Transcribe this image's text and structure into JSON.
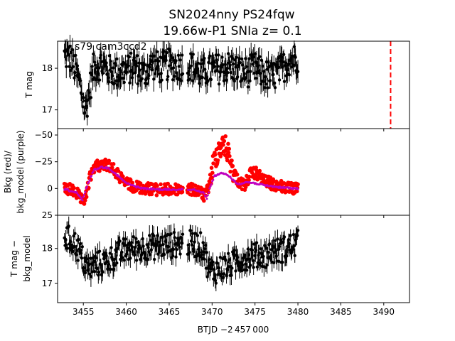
{
  "title_line1": "SN2024nny  PS24fqw",
  "title_line2": "19.66w-P1 SNIa z= 0.1",
  "xlabel": "BTJD −2 457 000",
  "colors": {
    "data": "#000000",
    "bkg": "#ff0000",
    "bkg_model": "#bf00bf",
    "marker": "#ff0000"
  },
  "chart_data": [
    {
      "type": "scatter",
      "panel": "top",
      "annotation": "s79 cam3ccd2",
      "ylabel": "T mag",
      "xlim": [
        3452,
        3493
      ],
      "ylim": [
        18.65,
        16.55
      ],
      "y_inverted": true,
      "xticks": [
        3455,
        3460,
        3465,
        3470,
        3475,
        3480,
        3485,
        3490
      ],
      "yticks": [
        17,
        18
      ],
      "ytick_labels": [
        "17",
        "18"
      ],
      "vline_x": 3490.8,
      "x_range": [
        3452.8,
        3480.0
      ],
      "y_range": [
        16.6,
        18.55
      ],
      "series": [
        {
          "values": [
            [
              3452.8,
              18.3
            ],
            [
              3453.5,
              18.25
            ],
            [
              3454.2,
              17.9
            ],
            [
              3454.8,
              17.45
            ],
            [
              3455.2,
              16.95
            ],
            [
              3455.6,
              17.35
            ],
            [
              3456.2,
              18.0
            ],
            [
              3457.0,
              18.1
            ],
            [
              3458.0,
              17.95
            ],
            [
              3459.0,
              17.9
            ],
            [
              3460.0,
              17.95
            ],
            [
              3461.0,
              18.05
            ],
            [
              3462.0,
              17.85
            ],
            [
              3463.0,
              18.1
            ],
            [
              3464.0,
              18.0
            ],
            [
              3465.0,
              18.1
            ],
            [
              3466.0,
              18.05
            ],
            [
              3467.0,
              18.1
            ],
            [
              3468.0,
              18.0
            ],
            [
              3468.8,
              17.85
            ],
            [
              3469.5,
              17.95
            ],
            [
              3470.0,
              17.95
            ],
            [
              3471.0,
              18.0
            ],
            [
              3472.0,
              18.05
            ],
            [
              3473.0,
              17.95
            ],
            [
              3474.0,
              17.9
            ],
            [
              3475.0,
              18.0
            ],
            [
              3476.0,
              17.85
            ],
            [
              3477.0,
              17.8
            ],
            [
              3478.0,
              17.95
            ],
            [
              3479.0,
              18.2
            ],
            [
              3480.0,
              18.25
            ]
          ]
        }
      ]
    },
    {
      "type": "scatter",
      "panel": "middle",
      "ylabel_line1": "Bkg (red)/",
      "ylabel_line2": "bkg_model (purple)",
      "xlim": [
        3452,
        3493
      ],
      "ylim": [
        -56,
        25
      ],
      "yticks": [
        25,
        0,
        -25,
        -50
      ],
      "ytick_labels": [
        "25",
        "0",
        "−25",
        "−50"
      ],
      "series": [
        {
          "name": "Bkg",
          "values": [
            [
              3452.8,
              1
            ],
            [
              3453.5,
              1
            ],
            [
              3454.3,
              5
            ],
            [
              3454.9,
              13
            ],
            [
              3455.3,
              8
            ],
            [
              3455.7,
              -8
            ],
            [
              3456.2,
              -20
            ],
            [
              3457.0,
              -22
            ],
            [
              3458.0,
              -22
            ],
            [
              3458.8,
              -15
            ],
            [
              3459.6,
              -7
            ],
            [
              3460.5,
              -3
            ],
            [
              3461.5,
              -1
            ],
            [
              3462.5,
              0
            ],
            [
              3463.5,
              1
            ],
            [
              3464.5,
              1
            ],
            [
              3465.5,
              1
            ],
            [
              3466.5,
              0
            ],
            [
              3467.5,
              1
            ],
            [
              3468.5,
              2
            ],
            [
              3469.2,
              8
            ],
            [
              3469.7,
              -5
            ],
            [
              3470.2,
              -25
            ],
            [
              3470.8,
              -38
            ],
            [
              3471.5,
              -40
            ],
            [
              3472.0,
              -30
            ],
            [
              3472.5,
              -16
            ],
            [
              3473.0,
              -7
            ],
            [
              3473.8,
              -3
            ],
            [
              3474.5,
              -14
            ],
            [
              3475.2,
              -14
            ],
            [
              3476.0,
              -8
            ],
            [
              3477.0,
              -4
            ],
            [
              3478.0,
              -2
            ],
            [
              3479.0,
              0
            ],
            [
              3480.0,
              1
            ]
          ]
        },
        {
          "name": "bkg_model",
          "values": [
            [
              3452.8,
              0.5
            ],
            [
              3454.2,
              4
            ],
            [
              3454.9,
              11
            ],
            [
              3455.5,
              -4
            ],
            [
              3456.2,
              -17
            ],
            [
              3457.0,
              -20
            ],
            [
              3458.0,
              -19
            ],
            [
              3459.0,
              -12
            ],
            [
              3460.0,
              -5
            ],
            [
              3461.0,
              -2
            ],
            [
              3462.0,
              0
            ],
            [
              3464.0,
              1
            ],
            [
              3466.0,
              1
            ],
            [
              3468.0,
              1
            ],
            [
              3469.0,
              4
            ],
            [
              3469.4,
              9
            ],
            [
              3469.8,
              -2
            ],
            [
              3470.3,
              -12
            ],
            [
              3471.0,
              -14
            ],
            [
              3471.8,
              -13
            ],
            [
              3472.3,
              -9
            ],
            [
              3473.0,
              -4
            ],
            [
              3474.0,
              -6
            ],
            [
              3475.0,
              -5
            ],
            [
              3476.0,
              -3
            ],
            [
              3478.0,
              -1
            ],
            [
              3480.0,
              0
            ]
          ]
        }
      ]
    },
    {
      "type": "scatter",
      "panel": "bottom",
      "ylabel_line1": "T mag −",
      "ylabel_line2": "bkg_model",
      "xlim": [
        3452,
        3493
      ],
      "ylim": [
        18.95,
        16.45
      ],
      "y_inverted": true,
      "yticks": [
        17,
        18
      ],
      "ytick_labels": [
        "17",
        "18"
      ],
      "xtick_labels": [
        "3455",
        "3460",
        "3465",
        "3470",
        "3475",
        "3480",
        "3485",
        "3490"
      ],
      "x_range": [
        3452.8,
        3480.0
      ],
      "y_range": [
        16.55,
        18.85
      ],
      "series": [
        {
          "values": [
            [
              3452.8,
              18.35
            ],
            [
              3453.5,
              18.25
            ],
            [
              3454.2,
              18.1
            ],
            [
              3455.0,
              17.65
            ],
            [
              3455.6,
              17.4
            ],
            [
              3456.5,
              17.55
            ],
            [
              3457.5,
              17.6
            ],
            [
              3458.5,
              17.75
            ],
            [
              3459.5,
              17.9
            ],
            [
              3460.5,
              18.0
            ],
            [
              3461.5,
              18.0
            ],
            [
              3462.5,
              18.05
            ],
            [
              3463.5,
              18.05
            ],
            [
              3464.5,
              18.1
            ],
            [
              3465.5,
              18.1
            ],
            [
              3466.5,
              18.15
            ],
            [
              3467.5,
              18.15
            ],
            [
              3468.5,
              18.1
            ],
            [
              3469.0,
              18.05
            ],
            [
              3469.6,
              17.4
            ],
            [
              3470.3,
              17.35
            ],
            [
              3471.0,
              17.45
            ],
            [
              3472.0,
              17.5
            ],
            [
              3473.0,
              17.65
            ],
            [
              3474.0,
              17.75
            ],
            [
              3475.0,
              17.8
            ],
            [
              3476.0,
              17.8
            ],
            [
              3477.0,
              17.9
            ],
            [
              3478.0,
              17.95
            ],
            [
              3479.0,
              18.05
            ],
            [
              3480.0,
              18.15
            ]
          ]
        }
      ]
    }
  ]
}
